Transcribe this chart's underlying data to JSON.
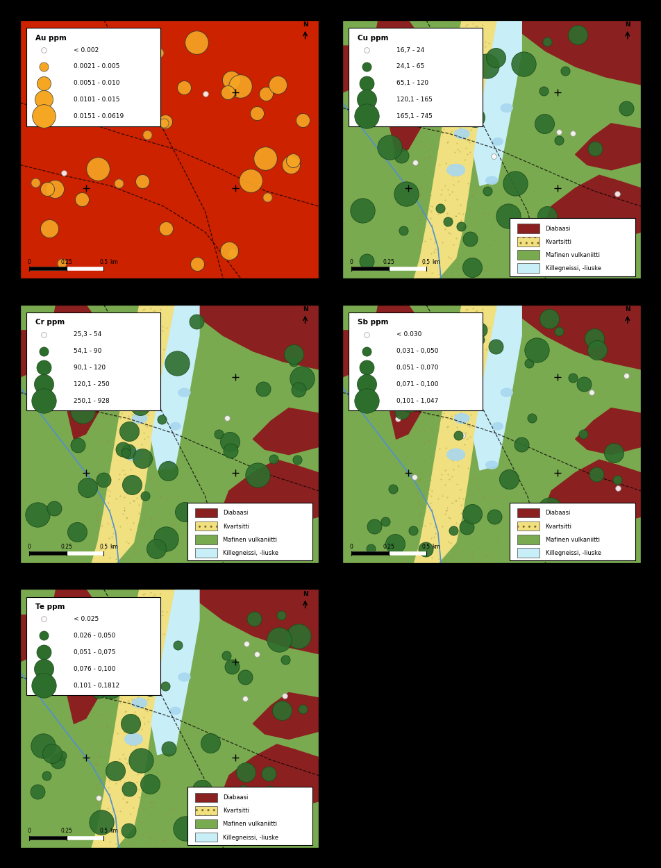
{
  "figure_bg": "#000000",
  "panels": [
    {
      "id": "Au",
      "title": "Au ppm",
      "legend_entries": [
        {
          "label": "< 0.002",
          "size": 2.0,
          "color": "#fffafa",
          "edgecolor": "#999999"
        },
        {
          "label": "0.0021 - 0.005",
          "size": 4.0,
          "color": "#f5a623",
          "edgecolor": "#555555"
        },
        {
          "label": "0.0051 - 0.010",
          "size": 7.0,
          "color": "#f5a623",
          "edgecolor": "#333333"
        },
        {
          "label": "0.0101 - 0.015",
          "size": 10.0,
          "color": "#f5a623",
          "edgecolor": "#333333"
        },
        {
          "label": "0.0151 - 0.0619",
          "size": 14.0,
          "color": "#f5a623",
          "edgecolor": "#333333"
        }
      ],
      "map_type": "heatmap",
      "x_ticks": [
        "3307000",
        "3308000"
      ],
      "y_ticks": [
        "7620000",
        "7621000"
      ],
      "has_geology_legend": false,
      "dot_color": "#f5a623",
      "dot_edgecolor": "#333333"
    },
    {
      "id": "Cu",
      "title": "Cu ppm",
      "legend_entries": [
        {
          "label": "16,7 - 24",
          "size": 2.0,
          "color": "#fffafa",
          "edgecolor": "#999999"
        },
        {
          "label": "24,1 - 65",
          "size": 4.0,
          "color": "#2d6e2d",
          "edgecolor": "#1a4a1a"
        },
        {
          "label": "65,1 - 120",
          "size": 7.5,
          "color": "#2d6e2d",
          "edgecolor": "#1a4a1a"
        },
        {
          "label": "120,1 - 165",
          "size": 11.0,
          "color": "#2d6e2d",
          "edgecolor": "#1a4a1a"
        },
        {
          "label": "165,1 - 745",
          "size": 15.0,
          "color": "#2d6e2d",
          "edgecolor": "#1a4a1a"
        }
      ],
      "map_type": "geology",
      "x_ticks": [
        "3307000",
        "3308000"
      ],
      "y_ticks": [
        "7620000",
        "7621000"
      ],
      "has_geology_legend": true,
      "dot_color": "#2d6e2d",
      "dot_edgecolor": "#1a4a1a"
    },
    {
      "id": "Cr",
      "title": "Cr ppm",
      "legend_entries": [
        {
          "label": "25,3 - 54",
          "size": 2.0,
          "color": "#fffafa",
          "edgecolor": "#999999"
        },
        {
          "label": "54,1 - 90",
          "size": 4.0,
          "color": "#2d6e2d",
          "edgecolor": "#1a4a1a"
        },
        {
          "label": "90,1 - 120",
          "size": 7.5,
          "color": "#2d6e2d",
          "edgecolor": "#1a4a1a"
        },
        {
          "label": "120,1 - 250",
          "size": 11.0,
          "color": "#2d6e2d",
          "edgecolor": "#1a4a1a"
        },
        {
          "label": "250,1 - 928",
          "size": 15.0,
          "color": "#2d6e2d",
          "edgecolor": "#1a4a1a"
        }
      ],
      "map_type": "geology",
      "x_ticks": [
        "3307000",
        "3308000"
      ],
      "y_ticks": [
        "7620000",
        "7621000"
      ],
      "has_geology_legend": true,
      "dot_color": "#2d6e2d",
      "dot_edgecolor": "#1a4a1a"
    },
    {
      "id": "Sb",
      "title": "Sb ppm",
      "legend_entries": [
        {
          "label": "< 0.030",
          "size": 2.0,
          "color": "#fffafa",
          "edgecolor": "#999999"
        },
        {
          "label": "0,031 - 0,050",
          "size": 4.0,
          "color": "#2d6e2d",
          "edgecolor": "#1a4a1a"
        },
        {
          "label": "0,051 - 0,070",
          "size": 7.5,
          "color": "#2d6e2d",
          "edgecolor": "#1a4a1a"
        },
        {
          "label": "0,071 - 0,100",
          "size": 11.0,
          "color": "#2d6e2d",
          "edgecolor": "#1a4a1a"
        },
        {
          "label": "0,101 - 1,047",
          "size": 15.0,
          "color": "#2d6e2d",
          "edgecolor": "#1a4a1a"
        }
      ],
      "map_type": "geology",
      "x_ticks": [
        "3307000",
        "3308000"
      ],
      "y_ticks": [
        "7620000",
        "7621000"
      ],
      "has_geology_legend": true,
      "dot_color": "#2d6e2d",
      "dot_edgecolor": "#1a4a1a"
    },
    {
      "id": "Te",
      "title": "Te ppm",
      "legend_entries": [
        {
          "label": "< 0.025",
          "size": 2.0,
          "color": "#fffafa",
          "edgecolor": "#999999"
        },
        {
          "label": "0,026 - 0,050",
          "size": 4.0,
          "color": "#2d6e2d",
          "edgecolor": "#1a4a1a"
        },
        {
          "label": "0,051 - 0,075",
          "size": 7.5,
          "color": "#2d6e2d",
          "edgecolor": "#1a4a1a"
        },
        {
          "label": "0,076 - 0,100",
          "size": 11.0,
          "color": "#2d6e2d",
          "edgecolor": "#1a4a1a"
        },
        {
          "label": "0,101 - 0,1812",
          "size": 15.0,
          "color": "#2d6e2d",
          "edgecolor": "#1a4a1a"
        }
      ],
      "map_type": "geology",
      "x_ticks": [
        "3307000",
        "3308000"
      ],
      "y_ticks": [
        "7620000",
        "7621000"
      ],
      "has_geology_legend": true,
      "dot_color": "#2d6e2d",
      "dot_edgecolor": "#1a4a1a"
    }
  ],
  "geology_legend": [
    {
      "label": "Diabaasi",
      "color": "#8b2020"
    },
    {
      "label": "Kvartsitti",
      "color": "#f0e080",
      "hatch": ".."
    },
    {
      "label": "Mafinen vulkaniitti",
      "color": "#7aaa50"
    },
    {
      "label": "Killegneissi, -liuske",
      "color": "#c8eef8"
    }
  ],
  "heatmap_colors": [
    "#000080",
    "#0000ff",
    "#0060ff",
    "#00c0ff",
    "#00ffff",
    "#40ff80",
    "#80ff40",
    "#ffff00",
    "#ffa000",
    "#ff4000",
    "#cc0000"
  ],
  "diabaasi_color": "#8b2020",
  "kvartsitti_color": "#f0e080",
  "mafinen_color": "#7aaa50",
  "killegneissi_color": "#c8eef8",
  "lake_color": "#a8d8f0",
  "river_color": "#5090d0"
}
